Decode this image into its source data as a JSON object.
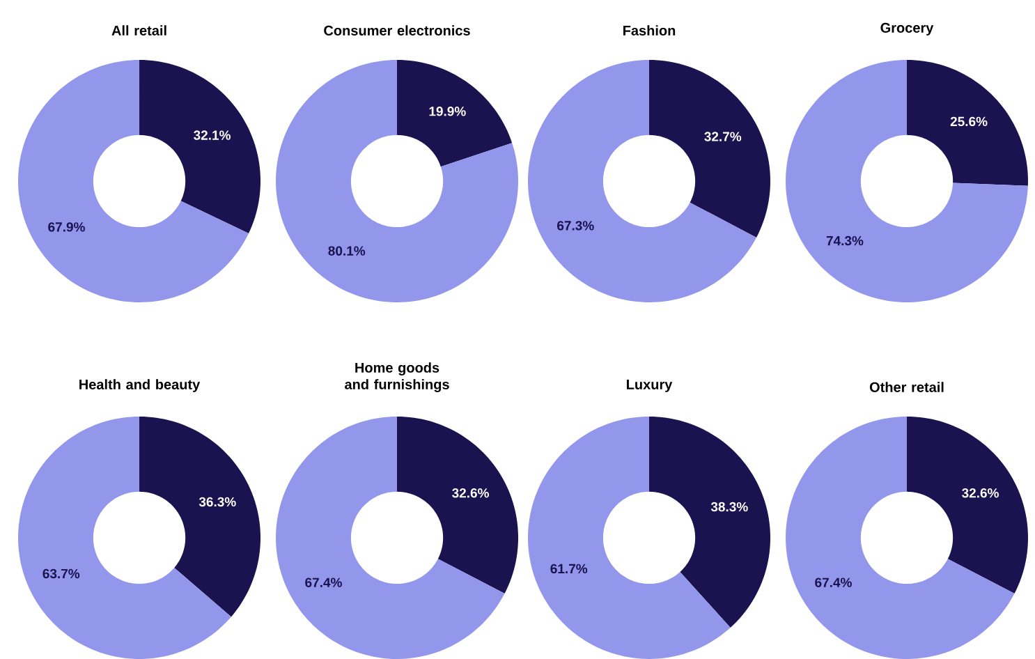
{
  "chart_data": [
    {
      "type": "donut",
      "title": "All retail",
      "categories": [
        null,
        null
      ],
      "values": [
        32.1,
        67.9
      ],
      "colors": [
        "#1b1250",
        "#9397ec"
      ],
      "value_labels": [
        "32.1%",
        "67.9%"
      ]
    },
    {
      "type": "donut",
      "title": "Consumer electronics",
      "categories": [
        null,
        null
      ],
      "values": [
        19.9,
        80.1
      ],
      "colors": [
        "#1b1250",
        "#9397ec"
      ],
      "value_labels": [
        "19.9%",
        "80.1%"
      ]
    },
    {
      "type": "donut",
      "title": "Fashion",
      "categories": [
        null,
        null
      ],
      "values": [
        32.7,
        67.3
      ],
      "colors": [
        "#1b1250",
        "#9397ec"
      ],
      "value_labels": [
        "32.7%",
        "67.3%"
      ]
    },
    {
      "type": "donut",
      "title": "Grocery",
      "categories": [
        null,
        null
      ],
      "values": [
        25.6,
        74.3
      ],
      "colors": [
        "#1b1250",
        "#9397ec"
      ],
      "value_labels": [
        "25.6%",
        "74.3%"
      ]
    },
    {
      "type": "donut",
      "title": "Health and beauty",
      "categories": [
        null,
        null
      ],
      "values": [
        36.3,
        63.7
      ],
      "colors": [
        "#1b1250",
        "#9397ec"
      ],
      "value_labels": [
        "36.3%",
        "63.7%"
      ]
    },
    {
      "type": "donut",
      "title": "Home goods and furnishings",
      "categories": [
        null,
        null
      ],
      "values": [
        32.6,
        67.4
      ],
      "colors": [
        "#1b1250",
        "#9397ec"
      ],
      "value_labels": [
        "32.6%",
        "67.4%"
      ]
    },
    {
      "type": "donut",
      "title": "Luxury",
      "categories": [
        null,
        null
      ],
      "values": [
        38.3,
        61.7
      ],
      "colors": [
        "#1b1250",
        "#9397ec"
      ],
      "value_labels": [
        "38.3%",
        "61.7%"
      ]
    },
    {
      "type": "donut",
      "title": "Other retail",
      "categories": [
        null,
        null
      ],
      "values": [
        32.6,
        67.4
      ],
      "colors": [
        "#1b1250",
        "#9397ec"
      ],
      "value_labels": [
        "32.6%",
        "67.4%"
      ]
    }
  ]
}
